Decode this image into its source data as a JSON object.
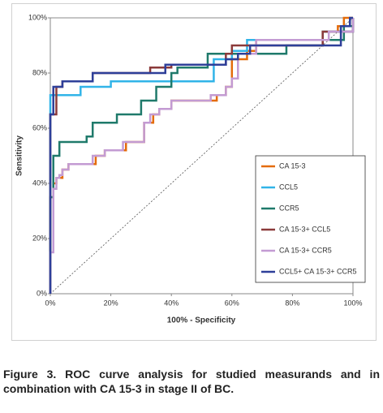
{
  "chart_data": {
    "type": "line",
    "xlabel": "100% - Specificity",
    "ylabel": "Sensitivity",
    "xlim": [
      0,
      100
    ],
    "ylim": [
      0,
      100
    ],
    "xticks": [
      {
        "value": 0,
        "label": "0%"
      },
      {
        "value": 20,
        "label": "20%"
      },
      {
        "value": 40,
        "label": "40%"
      },
      {
        "value": 60,
        "label": "60%"
      },
      {
        "value": 80,
        "label": "80%"
      },
      {
        "value": 100,
        "label": "100%"
      }
    ],
    "yticks": [
      {
        "value": 0,
        "label": "0%"
      },
      {
        "value": 20,
        "label": "20%"
      },
      {
        "value": 40,
        "label": "40%"
      },
      {
        "value": 60,
        "label": "60%"
      },
      {
        "value": 80,
        "label": "80%"
      },
      {
        "value": 100,
        "label": "100%"
      }
    ],
    "grid": false,
    "legend": "lower right",
    "series": [
      {
        "name": "CA 15-3",
        "color": "#e46c0a",
        "x": [
          0,
          0,
          1,
          1,
          2,
          2,
          4,
          4,
          6,
          6,
          15,
          15,
          18,
          18,
          25,
          25,
          31,
          31,
          34,
          34,
          36,
          36,
          40,
          40,
          55,
          55,
          58,
          58,
          60,
          60,
          65,
          65,
          68,
          68,
          90,
          90,
          95,
          95,
          97,
          97,
          100
        ],
        "values": [
          0,
          35,
          35,
          40,
          40,
          42,
          42,
          45,
          45,
          47,
          47,
          50,
          50,
          52,
          52,
          55,
          55,
          62,
          62,
          65,
          65,
          67,
          67,
          70,
          70,
          72,
          72,
          75,
          75,
          85,
          85,
          88,
          88,
          92,
          92,
          95,
          95,
          97,
          97,
          100,
          100
        ]
      },
      {
        "name": "CCL5",
        "color": "#31b4e8",
        "x": [
          0,
          0,
          10,
          10,
          20,
          20,
          54,
          54,
          60,
          60,
          65,
          65,
          90,
          90,
          100,
          100
        ],
        "values": [
          0,
          72,
          72,
          75,
          75,
          77,
          77,
          85,
          85,
          88,
          88,
          92,
          92,
          95,
          95,
          100
        ]
      },
      {
        "name": "CCR5",
        "color": "#1f7a6b",
        "x": [
          0,
          0,
          1,
          1,
          3,
          3,
          12,
          12,
          14,
          14,
          22,
          22,
          30,
          30,
          35,
          35,
          40,
          40,
          42,
          42,
          52,
          52,
          78,
          78,
          90,
          90,
          97,
          97,
          100,
          100
        ],
        "values": [
          0,
          35,
          35,
          50,
          50,
          55,
          55,
          57,
          57,
          62,
          62,
          65,
          65,
          70,
          70,
          75,
          75,
          80,
          80,
          82,
          82,
          87,
          87,
          90,
          90,
          92,
          92,
          97,
          97,
          100
        ]
      },
      {
        "name": "CA 15-3+ CCL5",
        "color": "#8b3a3a",
        "x": [
          0,
          0,
          2,
          2,
          4,
          4,
          14,
          14,
          33,
          33,
          40,
          40,
          58,
          58,
          60,
          60,
          90,
          90,
          100,
          100
        ],
        "values": [
          0,
          65,
          65,
          75,
          75,
          77,
          77,
          80,
          80,
          82,
          82,
          83,
          83,
          87,
          87,
          90,
          90,
          95,
          95,
          100
        ]
      },
      {
        "name": "CA 15-3+ CCR5",
        "color": "#c39bd3",
        "x": [
          0,
          0,
          1,
          1,
          2,
          2,
          3,
          3,
          4,
          4,
          6,
          6,
          14,
          14,
          18,
          18,
          24,
          24,
          31,
          31,
          33,
          33,
          36,
          36,
          40,
          40,
          53,
          53,
          58,
          58,
          60,
          60,
          62,
          62,
          68,
          68,
          92,
          92,
          100,
          100
        ],
        "values": [
          0,
          15,
          15,
          38,
          38,
          42,
          42,
          43,
          43,
          45,
          45,
          47,
          47,
          50,
          50,
          52,
          52,
          55,
          55,
          62,
          62,
          65,
          65,
          67,
          67,
          70,
          70,
          72,
          72,
          75,
          75,
          78,
          78,
          87,
          87,
          92,
          92,
          95,
          95,
          100
        ]
      },
      {
        "name": "CCL5+ CA 15-3+ CCR5",
        "color": "#2e3f99",
        "x": [
          0,
          0,
          1,
          1,
          4,
          4,
          14,
          14,
          38,
          38,
          58,
          58,
          62,
          62,
          66,
          66,
          96,
          96,
          99,
          99,
          100
        ],
        "values": [
          0,
          65,
          65,
          75,
          75,
          77,
          77,
          80,
          80,
          83,
          83,
          85,
          85,
          87,
          87,
          90,
          90,
          97,
          97,
          100,
          100
        ]
      }
    ]
  },
  "caption": "Figure 3. ROC curve analysis for studied measurands and in combination with CA 15-3 in stage II of BC."
}
